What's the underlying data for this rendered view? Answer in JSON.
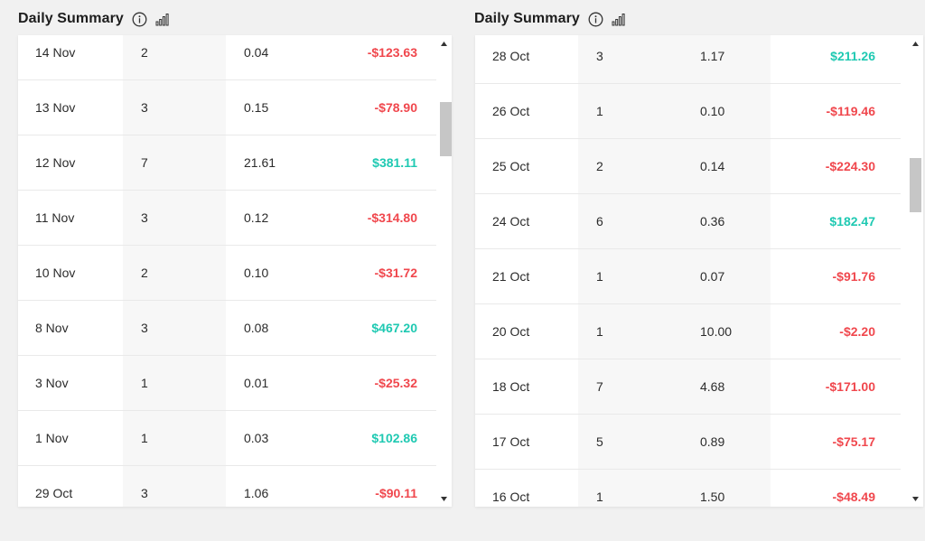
{
  "colors": {
    "negative": "#f0474d",
    "positive": "#1fc9b2",
    "text": "#2b2b2b",
    "title": "#1d1d1d"
  },
  "left": {
    "title": "Daily Summary",
    "rows": [
      {
        "date": "14 Nov",
        "count": "2",
        "value": "0.04",
        "amount": "-$123.63",
        "sign": "neg"
      },
      {
        "date": "13 Nov",
        "count": "3",
        "value": "0.15",
        "amount": "-$78.90",
        "sign": "neg"
      },
      {
        "date": "12 Nov",
        "count": "7",
        "value": "21.61",
        "amount": "$381.11",
        "sign": "pos"
      },
      {
        "date": "11 Nov",
        "count": "3",
        "value": "0.12",
        "amount": "-$314.80",
        "sign": "neg"
      },
      {
        "date": "10 Nov",
        "count": "2",
        "value": "0.10",
        "amount": "-$31.72",
        "sign": "neg"
      },
      {
        "date": "8 Nov",
        "count": "3",
        "value": "0.08",
        "amount": "$467.20",
        "sign": "pos"
      },
      {
        "date": "3 Nov",
        "count": "1",
        "value": "0.01",
        "amount": "-$25.32",
        "sign": "neg"
      },
      {
        "date": "1 Nov",
        "count": "1",
        "value": "0.03",
        "amount": "$102.86",
        "sign": "pos"
      },
      {
        "date": "29 Oct",
        "count": "3",
        "value": "1.06",
        "amount": "-$90.11",
        "sign": "neg"
      }
    ]
  },
  "right": {
    "title": "Daily Summary",
    "rows": [
      {
        "date": "28 Oct",
        "count": "3",
        "value": "1.17",
        "amount": "$211.26",
        "sign": "pos"
      },
      {
        "date": "26 Oct",
        "count": "1",
        "value": "0.10",
        "amount": "-$119.46",
        "sign": "neg"
      },
      {
        "date": "25 Oct",
        "count": "2",
        "value": "0.14",
        "amount": "-$224.30",
        "sign": "neg"
      },
      {
        "date": "24 Oct",
        "count": "6",
        "value": "0.36",
        "amount": "$182.47",
        "sign": "pos"
      },
      {
        "date": "21 Oct",
        "count": "1",
        "value": "0.07",
        "amount": "-$91.76",
        "sign": "neg"
      },
      {
        "date": "20 Oct",
        "count": "1",
        "value": "10.00",
        "amount": "-$2.20",
        "sign": "neg"
      },
      {
        "date": "18 Oct",
        "count": "7",
        "value": "4.68",
        "amount": "-$171.00",
        "sign": "neg"
      },
      {
        "date": "17 Oct",
        "count": "5",
        "value": "0.89",
        "amount": "-$75.17",
        "sign": "neg"
      },
      {
        "date": "16 Oct",
        "count": "1",
        "value": "1.50",
        "amount": "-$48.49",
        "sign": "neg"
      }
    ]
  }
}
